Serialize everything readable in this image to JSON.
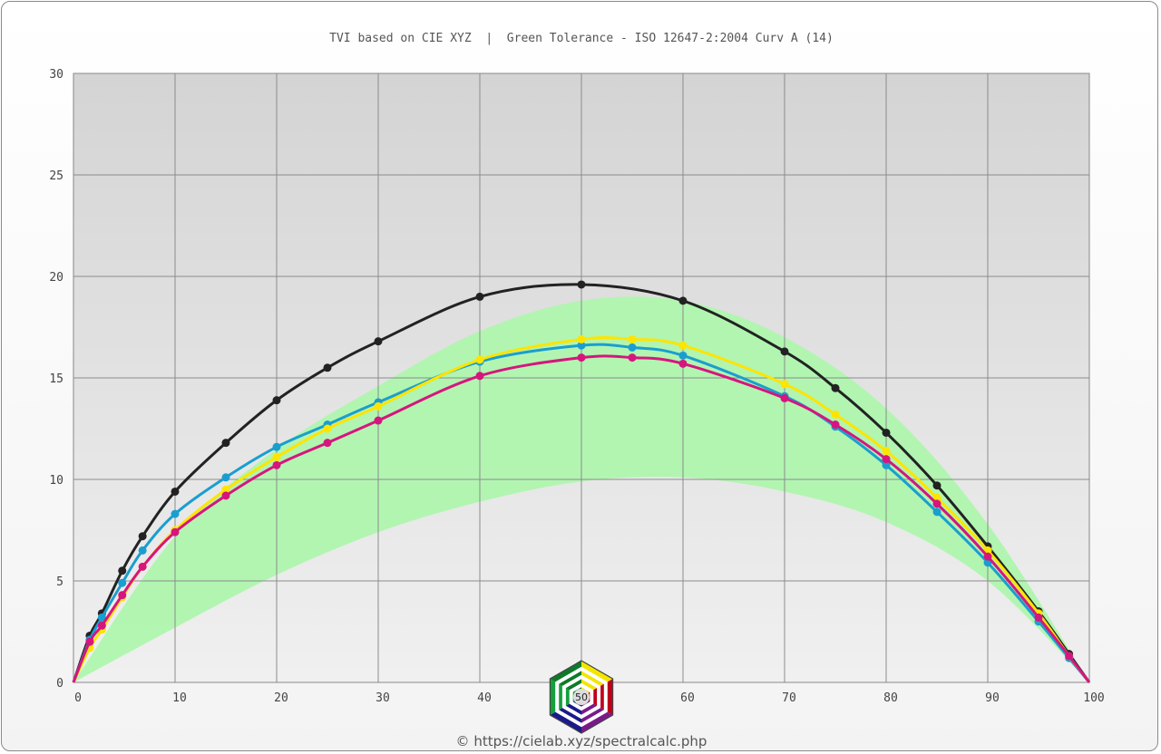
{
  "chart_data": {
    "type": "line",
    "title": "TVI based on CIE XYZ  |  Green Tolerance - ISO 12647-2:2004 Curv A (14)",
    "xlabel": "",
    "ylabel": "",
    "xlim": [
      0,
      100
    ],
    "ylim": [
      0,
      30
    ],
    "x_ticks": [
      0,
      10,
      20,
      30,
      40,
      50,
      60,
      70,
      80,
      90,
      100
    ],
    "y_ticks": [
      0,
      5,
      10,
      15,
      20,
      25,
      30
    ],
    "grid": true,
    "tolerance_band": {
      "color": "#aef5ae",
      "x": [
        0,
        10,
        20,
        30,
        40,
        50,
        60,
        70,
        80,
        90,
        100
      ],
      "upper": [
        0,
        7.2,
        11.5,
        14.6,
        17.3,
        18.8,
        18.8,
        17.0,
        13.5,
        7.8,
        0
      ],
      "lower": [
        0,
        2.7,
        5.3,
        7.4,
        8.9,
        9.9,
        10.1,
        9.4,
        7.9,
        5.0,
        0
      ]
    },
    "series": [
      {
        "color": "#222222",
        "x": [
          0,
          1.6,
          2.8,
          4.8,
          6.8,
          10,
          15,
          20,
          25,
          30,
          40,
          50,
          60,
          70,
          75,
          80,
          85,
          90,
          95,
          98,
          100
        ],
        "y": [
          0,
          2.3,
          3.4,
          5.5,
          7.2,
          9.4,
          11.8,
          13.9,
          15.5,
          16.8,
          19.0,
          19.6,
          18.8,
          16.3,
          14.5,
          12.3,
          9.7,
          6.7,
          3.5,
          1.4,
          0
        ]
      },
      {
        "color": "#1a9ecf",
        "x": [
          0,
          1.6,
          2.8,
          4.8,
          6.8,
          10,
          15,
          20,
          25,
          30,
          40,
          50,
          55,
          60,
          70,
          75,
          80,
          85,
          90,
          95,
          98,
          100
        ],
        "y": [
          0,
          2.1,
          3.2,
          4.9,
          6.5,
          8.3,
          10.1,
          11.6,
          12.7,
          13.8,
          15.8,
          16.6,
          16.5,
          16.1,
          14.1,
          12.6,
          10.7,
          8.4,
          5.9,
          3.0,
          1.2,
          0
        ]
      },
      {
        "color": "#ffe400",
        "x": [
          0,
          1.6,
          2.8,
          4.8,
          6.8,
          10,
          15,
          20,
          25,
          30,
          40,
          50,
          55,
          60,
          70,
          75,
          80,
          85,
          90,
          95,
          98,
          100
        ],
        "y": [
          0,
          1.7,
          2.6,
          4.2,
          5.7,
          7.5,
          9.5,
          11.1,
          12.5,
          13.6,
          15.9,
          16.9,
          16.9,
          16.6,
          14.7,
          13.2,
          11.4,
          9.1,
          6.5,
          3.4,
          1.3,
          0
        ]
      },
      {
        "color": "#d6157f",
        "x": [
          0,
          1.6,
          2.8,
          4.8,
          6.8,
          10,
          15,
          20,
          25,
          30,
          40,
          50,
          55,
          60,
          70,
          75,
          80,
          85,
          90,
          95,
          98,
          100
        ],
        "y": [
          0,
          2.0,
          2.8,
          4.3,
          5.7,
          7.4,
          9.2,
          10.7,
          11.8,
          12.9,
          15.1,
          16.0,
          16.0,
          15.7,
          14.0,
          12.7,
          11.0,
          8.8,
          6.2,
          3.2,
          1.3,
          0
        ]
      }
    ]
  },
  "logo": {
    "name": "cielab-hexagon-logo",
    "label": "50"
  },
  "credit": "© https://cielab.xyz/spectralcalc.php"
}
